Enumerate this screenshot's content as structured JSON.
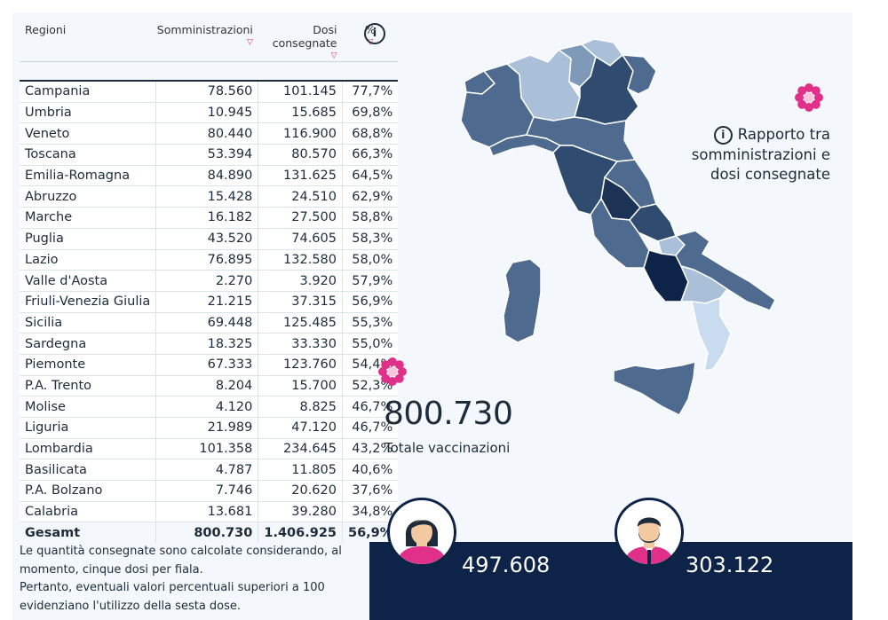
{
  "table": {
    "headers": [
      "Regioni",
      "Somministrazioni",
      "Dosi consegnate",
      "%"
    ],
    "rows": [
      [
        "Campania",
        "78.560",
        "101.145",
        "77,7%"
      ],
      [
        "Umbria",
        "10.945",
        "15.685",
        "69,8%"
      ],
      [
        "Veneto",
        "80.440",
        "116.900",
        "68,8%"
      ],
      [
        "Toscana",
        "53.394",
        "80.570",
        "66,3%"
      ],
      [
        "Emilia-Romagna",
        "84.890",
        "131.625",
        "64,5%"
      ],
      [
        "Abruzzo",
        "15.428",
        "24.510",
        "62,9%"
      ],
      [
        "Marche",
        "16.182",
        "27.500",
        "58,8%"
      ],
      [
        "Puglia",
        "43.520",
        "74.605",
        "58,3%"
      ],
      [
        "Lazio",
        "76.895",
        "132.580",
        "58,0%"
      ],
      [
        "Valle d'Aosta",
        "2.270",
        "3.920",
        "57,9%"
      ],
      [
        "Friuli-Venezia Giulia",
        "21.215",
        "37.315",
        "56,9%"
      ],
      [
        "Sicilia",
        "69.448",
        "125.485",
        "55,3%"
      ],
      [
        "Sardegna",
        "18.325",
        "33.330",
        "55,0%"
      ],
      [
        "Piemonte",
        "67.333",
        "123.760",
        "54,4%"
      ],
      [
        "P.A. Trento",
        "8.204",
        "15.700",
        "52,3%"
      ],
      [
        "Molise",
        "4.120",
        "8.825",
        "46,7%"
      ],
      [
        "Liguria",
        "21.989",
        "47.120",
        "46,7%"
      ],
      [
        "Lombardia",
        "101.358",
        "234.645",
        "43,2%"
      ],
      [
        "Basilicata",
        "4.787",
        "11.805",
        "40,6%"
      ],
      [
        "P.A. Bolzano",
        "7.746",
        "20.620",
        "37,6%"
      ],
      [
        "Calabria",
        "13.681",
        "39.280",
        "34,8%"
      ]
    ],
    "total": [
      "Gesamt",
      "800.730",
      "1.406.925",
      "56,9%"
    ]
  },
  "note": {
    "line1": "Le quantità consegnate sono calcolate considerando, al",
    "line2": "momento, cinque dosi per fiala.",
    "line3": "Pertanto, eventuali valori percentuali superiori a 100",
    "line4": "evidenziano l'utilizzo della sesta dose."
  },
  "map_legend": {
    "icon_glyph": "i",
    "line1": "Rapporto tra",
    "line2": "somministrazioni e",
    "line3": "dosi consegnate"
  },
  "info_glyph": "i",
  "kpi": {
    "total_value": "800.730",
    "total_label": "Totale vaccinazioni",
    "women_value": "497.608",
    "men_value": "303.122"
  },
  "colors": {
    "darkest": "#0d2347",
    "dark": "#2f4c70",
    "mid": "#4e6b8f",
    "light": "#7f9ab8",
    "lighter": "#a9c0d8",
    "lightest": "#c9dcef",
    "accent_pink": "#e0308a"
  },
  "chart_data": {
    "type": "table",
    "title": "",
    "columns": [
      "Regioni",
      "Somministrazioni",
      "Dosi consegnate",
      "%"
    ],
    "categories": [
      "Campania",
      "Umbria",
      "Veneto",
      "Toscana",
      "Emilia-Romagna",
      "Abruzzo",
      "Marche",
      "Puglia",
      "Lazio",
      "Valle d'Aosta",
      "Friuli-Venezia Giulia",
      "Sicilia",
      "Sardegna",
      "Piemonte",
      "P.A. Trento",
      "Molise",
      "Liguria",
      "Lombardia",
      "Basilicata",
      "P.A. Bolzano",
      "Calabria"
    ],
    "series": [
      {
        "name": "Somministrazioni",
        "values": [
          78560,
          10945,
          80440,
          53394,
          84890,
          15428,
          16182,
          43520,
          76895,
          2270,
          21215,
          69448,
          18325,
          67333,
          8204,
          4120,
          21989,
          101358,
          4787,
          7746,
          13681
        ]
      },
      {
        "name": "Dosi consegnate",
        "values": [
          101145,
          15685,
          116900,
          80570,
          131625,
          24510,
          27500,
          74605,
          132580,
          3920,
          37315,
          125485,
          33330,
          123760,
          15700,
          8825,
          47120,
          234645,
          11805,
          20620,
          39280
        ]
      },
      {
        "name": "%",
        "values": [
          77.7,
          69.8,
          68.8,
          66.3,
          64.5,
          62.9,
          58.8,
          58.3,
          58.0,
          57.9,
          56.9,
          55.3,
          55.0,
          54.4,
          52.3,
          46.7,
          46.7,
          43.2,
          40.6,
          37.6,
          34.8
        ]
      }
    ],
    "totals": {
      "Somministrazioni": 800730,
      "Dosi consegnate": 1406925,
      "%": 56.9
    },
    "kpis": {
      "Totale vaccinazioni": 800730,
      "women": 497608,
      "men": 303122
    }
  }
}
